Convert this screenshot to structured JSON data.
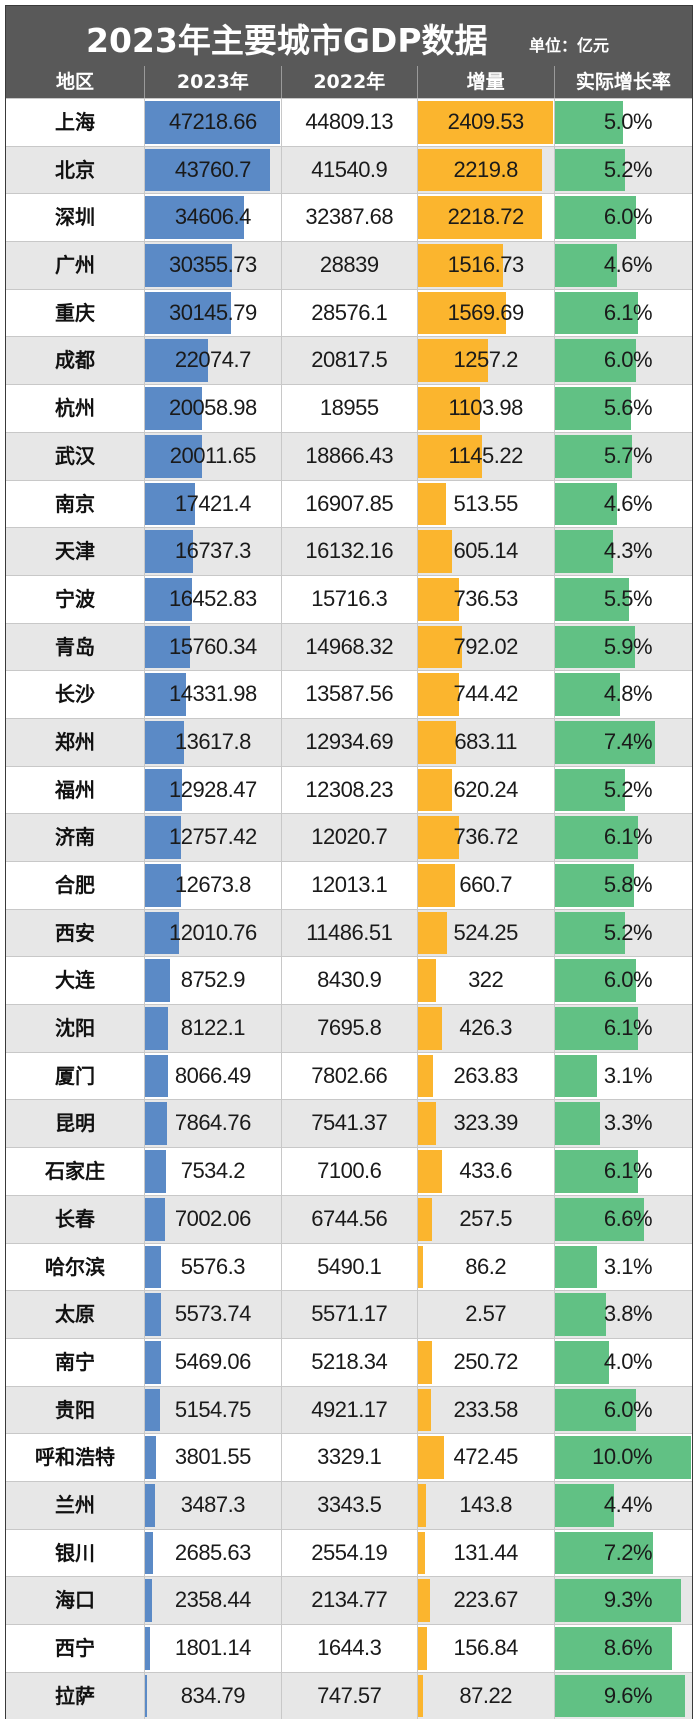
{
  "title": "2023年主要城市GDP数据",
  "unit": "单位：亿元",
  "headers": [
    "地区",
    "2023年",
    "2022年",
    "增量",
    "实际增长率"
  ],
  "colors": {
    "header_bg": "#595959",
    "gdp_bar": "#5b8ac6",
    "increase_bar": "#fbb52e",
    "growth_bar": "#61c184",
    "alt_row": "#e7e7e7"
  },
  "rows": [
    {
      "city": "上海",
      "gdp2023": "47218.66",
      "gdp2022": "44809.13",
      "increase": "2409.53",
      "growth": "5.0%"
    },
    {
      "city": "北京",
      "gdp2023": "43760.7",
      "gdp2022": "41540.9",
      "increase": "2219.8",
      "growth": "5.2%"
    },
    {
      "city": "深圳",
      "gdp2023": "34606.4",
      "gdp2022": "32387.68",
      "increase": "2218.72",
      "growth": "6.0%"
    },
    {
      "city": "广州",
      "gdp2023": "30355.73",
      "gdp2022": "28839",
      "increase": "1516.73",
      "growth": "4.6%"
    },
    {
      "city": "重庆",
      "gdp2023": "30145.79",
      "gdp2022": "28576.1",
      "increase": "1569.69",
      "growth": "6.1%"
    },
    {
      "city": "成都",
      "gdp2023": "22074.7",
      "gdp2022": "20817.5",
      "increase": "1257.2",
      "growth": "6.0%"
    },
    {
      "city": "杭州",
      "gdp2023": "20058.98",
      "gdp2022": "18955",
      "increase": "1103.98",
      "growth": "5.6%"
    },
    {
      "city": "武汉",
      "gdp2023": "20011.65",
      "gdp2022": "18866.43",
      "increase": "1145.22",
      "growth": "5.7%"
    },
    {
      "city": "南京",
      "gdp2023": "17421.4",
      "gdp2022": "16907.85",
      "increase": "513.55",
      "growth": "4.6%"
    },
    {
      "city": "天津",
      "gdp2023": "16737.3",
      "gdp2022": "16132.16",
      "increase": "605.14",
      "growth": "4.3%"
    },
    {
      "city": "宁波",
      "gdp2023": "16452.83",
      "gdp2022": "15716.3",
      "increase": "736.53",
      "growth": "5.5%"
    },
    {
      "city": "青岛",
      "gdp2023": "15760.34",
      "gdp2022": "14968.32",
      "increase": "792.02",
      "growth": "5.9%"
    },
    {
      "city": "长沙",
      "gdp2023": "14331.98",
      "gdp2022": "13587.56",
      "increase": "744.42",
      "growth": "4.8%"
    },
    {
      "city": "郑州",
      "gdp2023": "13617.8",
      "gdp2022": "12934.69",
      "increase": "683.11",
      "growth": "7.4%"
    },
    {
      "city": "福州",
      "gdp2023": "12928.47",
      "gdp2022": "12308.23",
      "increase": "620.24",
      "growth": "5.2%"
    },
    {
      "city": "济南",
      "gdp2023": "12757.42",
      "gdp2022": "12020.7",
      "increase": "736.72",
      "growth": "6.1%"
    },
    {
      "city": "合肥",
      "gdp2023": "12673.8",
      "gdp2022": "12013.1",
      "increase": "660.7",
      "growth": "5.8%"
    },
    {
      "city": "西安",
      "gdp2023": "12010.76",
      "gdp2022": "11486.51",
      "increase": "524.25",
      "growth": "5.2%"
    },
    {
      "city": "大连",
      "gdp2023": "8752.9",
      "gdp2022": "8430.9",
      "increase": "322",
      "growth": "6.0%"
    },
    {
      "city": "沈阳",
      "gdp2023": "8122.1",
      "gdp2022": "7695.8",
      "increase": "426.3",
      "growth": "6.1%"
    },
    {
      "city": "厦门",
      "gdp2023": "8066.49",
      "gdp2022": "7802.66",
      "increase": "263.83",
      "growth": "3.1%"
    },
    {
      "city": "昆明",
      "gdp2023": "7864.76",
      "gdp2022": "7541.37",
      "increase": "323.39",
      "growth": "3.3%"
    },
    {
      "city": "石家庄",
      "gdp2023": "7534.2",
      "gdp2022": "7100.6",
      "increase": "433.6",
      "growth": "6.1%"
    },
    {
      "city": "长春",
      "gdp2023": "7002.06",
      "gdp2022": "6744.56",
      "increase": "257.5",
      "growth": "6.6%"
    },
    {
      "city": "哈尔滨",
      "gdp2023": "5576.3",
      "gdp2022": "5490.1",
      "increase": "86.2",
      "growth": "3.1%"
    },
    {
      "city": "太原",
      "gdp2023": "5573.74",
      "gdp2022": "5571.17",
      "increase": "2.57",
      "growth": "3.8%"
    },
    {
      "city": "南宁",
      "gdp2023": "5469.06",
      "gdp2022": "5218.34",
      "increase": "250.72",
      "growth": "4.0%"
    },
    {
      "city": "贵阳",
      "gdp2023": "5154.75",
      "gdp2022": "4921.17",
      "increase": "233.58",
      "growth": "6.0%"
    },
    {
      "city": "呼和浩特",
      "gdp2023": "3801.55",
      "gdp2022": "3329.1",
      "increase": "472.45",
      "growth": "10.0%"
    },
    {
      "city": "兰州",
      "gdp2023": "3487.3",
      "gdp2022": "3343.5",
      "increase": "143.8",
      "growth": "4.4%"
    },
    {
      "city": "银川",
      "gdp2023": "2685.63",
      "gdp2022": "2554.19",
      "increase": "131.44",
      "growth": "7.2%"
    },
    {
      "city": "海口",
      "gdp2023": "2358.44",
      "gdp2022": "2134.77",
      "increase": "223.67",
      "growth": "9.3%"
    },
    {
      "city": "西宁",
      "gdp2023": "1801.14",
      "gdp2022": "1644.3",
      "increase": "156.84",
      "growth": "8.6%"
    },
    {
      "city": "拉萨",
      "gdp2023": "834.79",
      "gdp2022": "747.57",
      "increase": "87.22",
      "growth": "9.6%"
    }
  ],
  "chart_data": {
    "type": "table",
    "title": "2023年主要城市GDP数据",
    "subtitle": "单位：亿元",
    "columns": [
      "地区",
      "2023年",
      "2022年",
      "增量",
      "实际增长率"
    ],
    "categories": [
      "上海",
      "北京",
      "深圳",
      "广州",
      "重庆",
      "成都",
      "杭州",
      "武汉",
      "南京",
      "天津",
      "宁波",
      "青岛",
      "长沙",
      "郑州",
      "福州",
      "济南",
      "合肥",
      "西安",
      "大连",
      "沈阳",
      "厦门",
      "昆明",
      "石家庄",
      "长春",
      "哈尔滨",
      "太原",
      "南宁",
      "贵阳",
      "呼和浩特",
      "兰州",
      "银川",
      "海口",
      "西宁",
      "拉萨"
    ],
    "series": [
      {
        "name": "2023年",
        "bar": true,
        "color": "#5b8ac6",
        "values": [
          47218.66,
          43760.7,
          34606.4,
          30355.73,
          30145.79,
          22074.7,
          20058.98,
          20011.65,
          17421.4,
          16737.3,
          16452.83,
          15760.34,
          14331.98,
          13617.8,
          12928.47,
          12757.42,
          12673.8,
          12010.76,
          8752.9,
          8122.1,
          8066.49,
          7864.76,
          7534.2,
          7002.06,
          5576.3,
          5573.74,
          5469.06,
          5154.75,
          3801.55,
          3487.3,
          2685.63,
          2358.44,
          1801.14,
          834.79
        ]
      },
      {
        "name": "2022年",
        "bar": false,
        "values": [
          44809.13,
          41540.9,
          32387.68,
          28839,
          28576.1,
          20817.5,
          18955,
          18866.43,
          16907.85,
          16132.16,
          15716.3,
          14968.32,
          13587.56,
          12934.69,
          12308.23,
          12020.7,
          12013.1,
          11486.51,
          8430.9,
          7695.8,
          7802.66,
          7541.37,
          7100.6,
          6744.56,
          5490.1,
          5571.17,
          5218.34,
          4921.17,
          3329.1,
          3343.5,
          2554.19,
          2134.77,
          1644.3,
          747.57
        ]
      },
      {
        "name": "增量",
        "bar": true,
        "color": "#fbb52e",
        "values": [
          2409.53,
          2219.8,
          2218.72,
          1516.73,
          1569.69,
          1257.2,
          1103.98,
          1145.22,
          513.55,
          605.14,
          736.53,
          792.02,
          744.42,
          683.11,
          620.24,
          736.72,
          660.7,
          524.25,
          322,
          426.3,
          263.83,
          323.39,
          433.6,
          257.5,
          86.2,
          2.57,
          250.72,
          233.58,
          472.45,
          143.8,
          131.44,
          223.67,
          156.84,
          87.22
        ]
      },
      {
        "name": "实际增长率",
        "unit": "%",
        "bar": true,
        "color": "#61c184",
        "values": [
          5.0,
          5.2,
          6.0,
          4.6,
          6.1,
          6.0,
          5.6,
          5.7,
          4.6,
          4.3,
          5.5,
          5.9,
          4.8,
          7.4,
          5.2,
          6.1,
          5.8,
          5.2,
          6.0,
          6.1,
          3.1,
          3.3,
          6.1,
          6.6,
          3.1,
          3.8,
          4.0,
          6.0,
          10.0,
          4.4,
          7.2,
          9.3,
          8.6,
          9.6
        ]
      }
    ]
  }
}
